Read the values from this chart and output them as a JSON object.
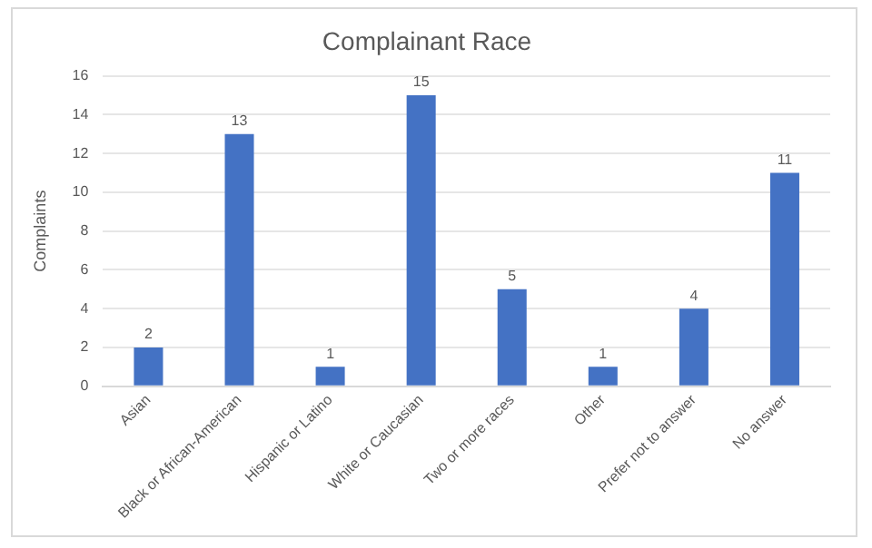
{
  "chart_data": {
    "type": "bar",
    "title": "Complainant Race",
    "ylabel": "Complaints",
    "categories": [
      "Asian",
      "Black or African-American",
      "Hispanic or Latino",
      "White or Caucasian",
      "Two or more races",
      "Other",
      "Prefer not to answer",
      "No answer"
    ],
    "values": [
      2,
      13,
      1,
      15,
      5,
      1,
      4,
      11
    ],
    "color": "#4472c4",
    "ylim": [
      0,
      16
    ],
    "yticks": [
      0,
      2,
      4,
      6,
      8,
      10,
      12,
      14,
      16
    ],
    "grid": "y",
    "data_labels": true
  }
}
